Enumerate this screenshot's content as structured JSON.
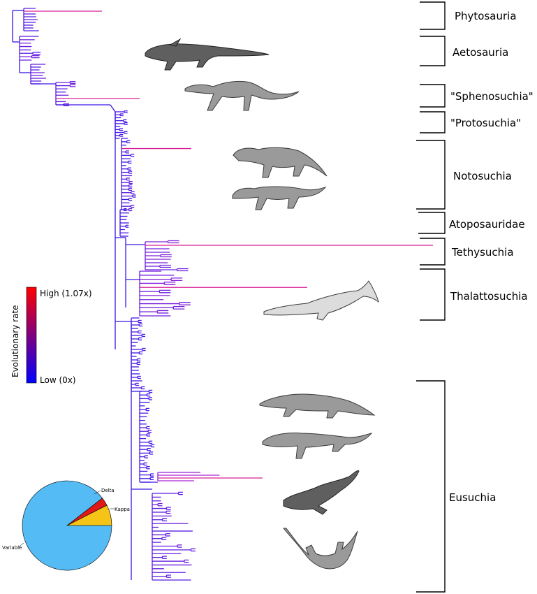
{
  "clades": [
    {
      "key": "phytosauria",
      "label": "Phytosauria"
    },
    {
      "key": "aetosauria",
      "label": "Aetosauria"
    },
    {
      "key": "sphenosuchia",
      "label": "\"Sphenosuchia\""
    },
    {
      "key": "protosuchia",
      "label": "\"Protosuchia\""
    },
    {
      "key": "notosuchia",
      "label": "Notosuchia"
    },
    {
      "key": "atoposauridae",
      "label": "Atoposauridae"
    },
    {
      "key": "tethysuchia",
      "label": "Tethysuchia"
    },
    {
      "key": "thalattosuchia",
      "label": "Thalattosuchia"
    },
    {
      "key": "eusuchia",
      "label": "Eusuchia"
    }
  ],
  "legend": {
    "title": "Evolutionary rate",
    "high": "High (1.07x)",
    "low": "Low (0x)",
    "color_high": "#ff0000",
    "color_low": "#0000ff"
  },
  "pie": {
    "slices": [
      {
        "label": "Variable",
        "fraction": 0.895,
        "color": "#55bbf5"
      },
      {
        "label": "Kappa",
        "fraction": 0.075,
        "color": "#f5c416"
      },
      {
        "label": "Delta",
        "fraction": 0.03,
        "color": "#e01818"
      }
    ]
  },
  "silhouettes": [
    {
      "name": "aetosaur-silhouette",
      "shade": "dark"
    },
    {
      "name": "sphenosuchian-silhouette",
      "shade": "mid"
    },
    {
      "name": "notosuchian-silhouette-1",
      "shade": "mid"
    },
    {
      "name": "notosuchian-silhouette-2",
      "shade": "mid"
    },
    {
      "name": "thalattosuchian-silhouette",
      "shade": "light"
    },
    {
      "name": "crocodile-silhouette-1",
      "shade": "mid"
    },
    {
      "name": "crocodile-silhouette-2",
      "shade": "mid"
    },
    {
      "name": "crocodile-silhouette-3",
      "shade": "dark"
    },
    {
      "name": "gharial-silhouette",
      "shade": "mid"
    }
  ]
}
